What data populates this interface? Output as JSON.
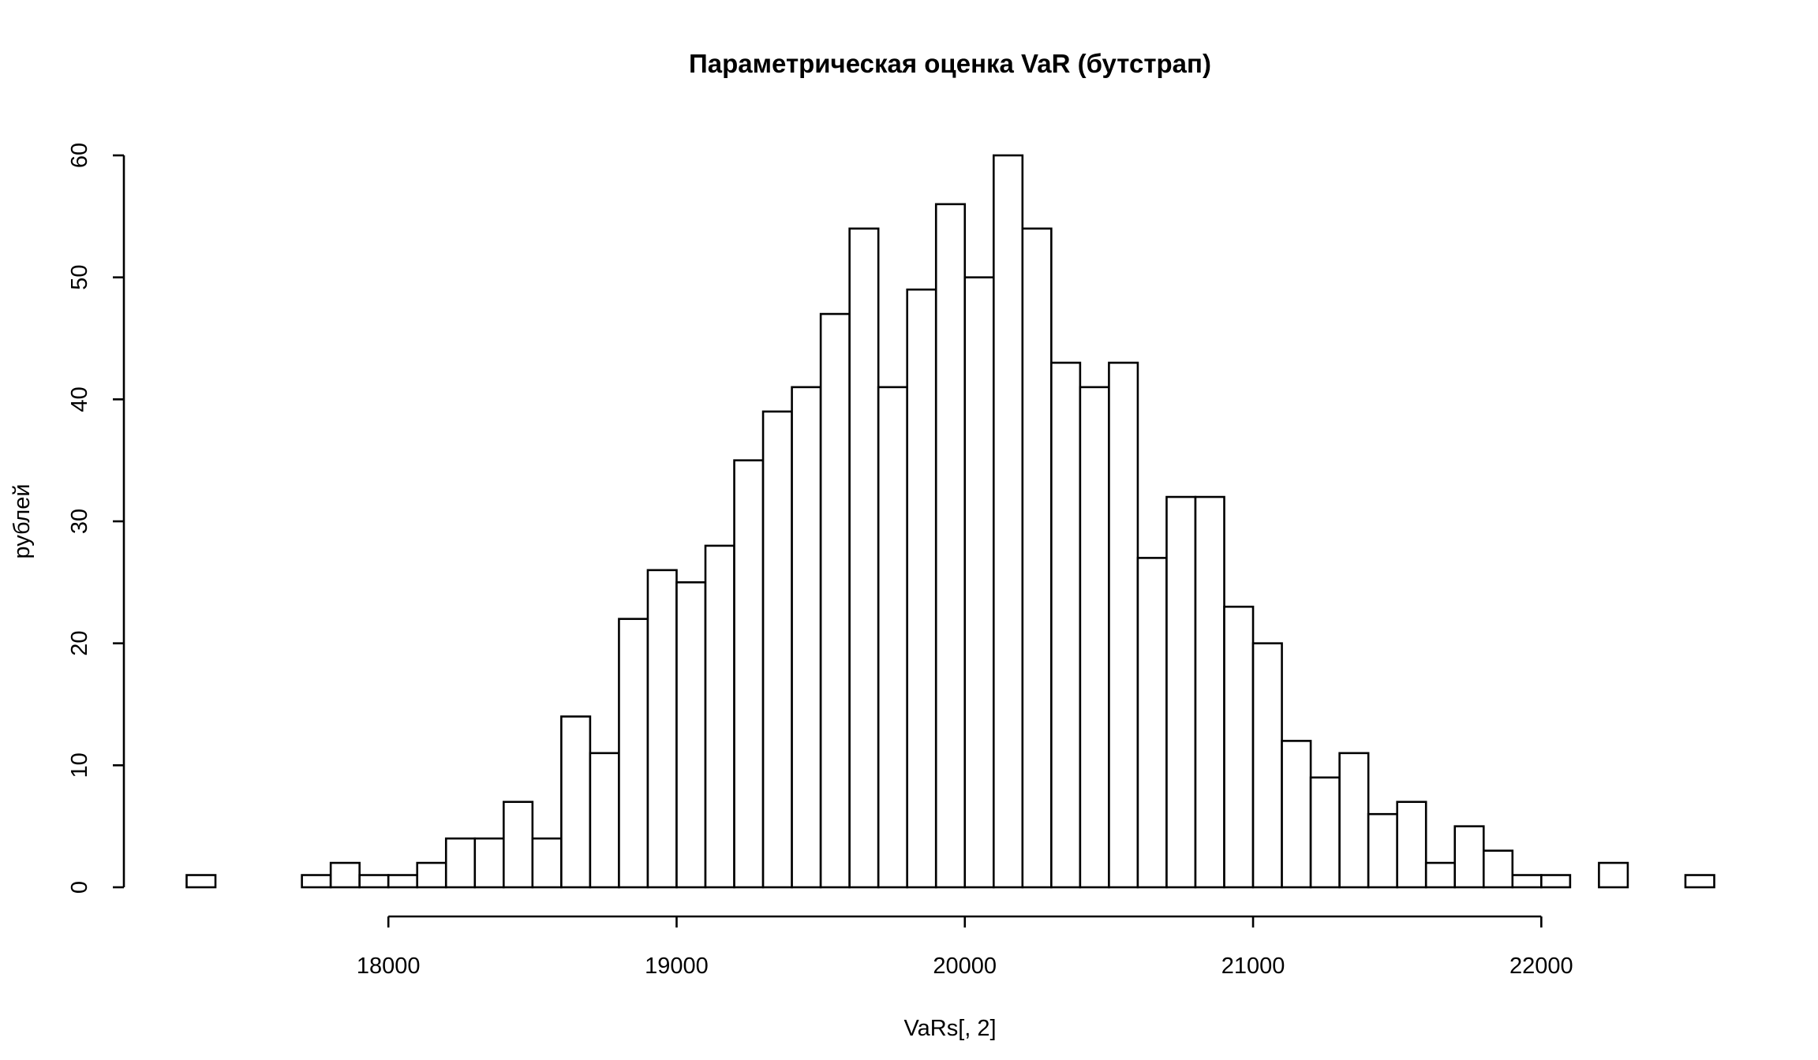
{
  "chart_data": {
    "type": "bar",
    "title": "Параметрическая оценка VaR (бутстрап)",
    "xlabel": "VaRs[, 2]",
    "ylabel": "рублей",
    "xlim": [
      17300,
      22600
    ],
    "ylim": [
      0,
      60
    ],
    "bin_width": 100,
    "bins_start": 17300,
    "values": [
      1,
      0,
      0,
      0,
      1,
      2,
      1,
      1,
      2,
      4,
      4,
      7,
      4,
      14,
      11,
      22,
      26,
      25,
      28,
      35,
      39,
      41,
      47,
      54,
      41,
      49,
      56,
      50,
      60,
      54,
      43,
      41,
      43,
      27,
      32,
      32,
      23,
      20,
      12,
      9,
      11,
      6,
      7,
      2,
      5,
      3,
      1,
      1,
      0,
      2,
      0,
      0,
      1
    ],
    "x_ticks": [
      "18000",
      "19000",
      "20000",
      "21000",
      "22000"
    ],
    "x_tick_values": [
      18000,
      19000,
      20000,
      21000,
      22000
    ],
    "y_ticks": [
      "0",
      "10",
      "20",
      "30",
      "40",
      "50",
      "60"
    ],
    "y_tick_values": [
      0,
      10,
      20,
      30,
      40,
      50,
      60
    ],
    "grid": false,
    "legend": "none"
  }
}
